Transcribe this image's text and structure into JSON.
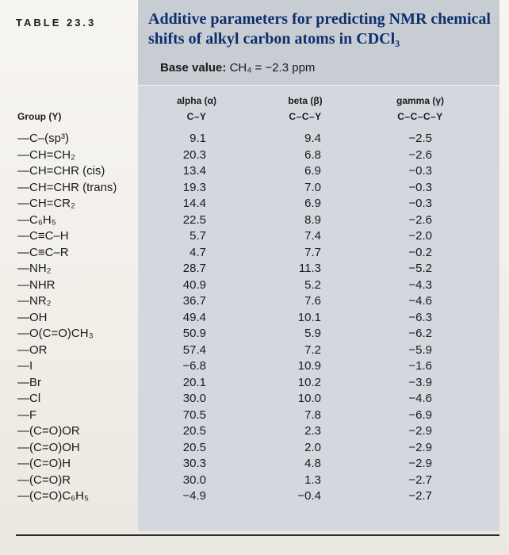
{
  "table_label": "TABLE 23.3",
  "title": "Additive parameters for predicting NMR chemical shifts of alkyl carbon atoms in CDCl₃",
  "base_value_label": "Base value:",
  "base_value_expr": "CH₄ = −2.3 ppm",
  "columns": {
    "group": "Group (Y)",
    "alpha": "alpha (α)",
    "alpha_sub": "C–Y",
    "beta": "beta (β)",
    "beta_sub": "C–C–Y",
    "gamma": "gamma (γ)",
    "gamma_sub": "C–C–C–Y"
  },
  "rows": [
    {
      "group": "—C–(sp³)",
      "alpha": "9.1",
      "beta": "9.4",
      "gamma": "−2.5"
    },
    {
      "group": "—CH=CH₂",
      "alpha": "20.3",
      "beta": "6.8",
      "gamma": "−2.6"
    },
    {
      "group": "—CH=CHR (cis)",
      "alpha": "13.4",
      "beta": "6.9",
      "gamma": "−0.3"
    },
    {
      "group": "—CH=CHR (trans)",
      "alpha": "19.3",
      "beta": "7.0",
      "gamma": "−0.3"
    },
    {
      "group": "—CH=CR₂",
      "alpha": "14.4",
      "beta": "6.9",
      "gamma": "−0.3"
    },
    {
      "group": "—C₆H₅",
      "alpha": "22.5",
      "beta": "8.9",
      "gamma": "−2.6"
    },
    {
      "group": "—C≡C–H",
      "alpha": "5.7",
      "beta": "7.4",
      "gamma": "−2.0"
    },
    {
      "group": "—C≡C–R",
      "alpha": "4.7",
      "beta": "7.7",
      "gamma": "−0.2"
    },
    {
      "group": "—NH₂",
      "alpha": "28.7",
      "beta": "11.3",
      "gamma": "−5.2"
    },
    {
      "group": "—NHR",
      "alpha": "40.9",
      "beta": "5.2",
      "gamma": "−4.3"
    },
    {
      "group": "—NR₂",
      "alpha": "36.7",
      "beta": "7.6",
      "gamma": "−4.6"
    },
    {
      "group": "—OH",
      "alpha": "49.4",
      "beta": "10.1",
      "gamma": "−6.3"
    },
    {
      "group": "—O(C=O)CH₃",
      "alpha": "50.9",
      "beta": "5.9",
      "gamma": "−6.2"
    },
    {
      "group": "—OR",
      "alpha": "57.4",
      "beta": "7.2",
      "gamma": "−5.9"
    },
    {
      "group": "—I",
      "alpha": "−6.8",
      "beta": "10.9",
      "gamma": "−1.6"
    },
    {
      "group": "—Br",
      "alpha": "20.1",
      "beta": "10.2",
      "gamma": "−3.9"
    },
    {
      "group": "—Cl",
      "alpha": "30.0",
      "beta": "10.0",
      "gamma": "−4.6"
    },
    {
      "group": "—F",
      "alpha": "70.5",
      "beta": "7.8",
      "gamma": "−6.9"
    },
    {
      "group": "—(C=O)OR",
      "alpha": "20.5",
      "beta": "2.3",
      "gamma": "−2.9"
    },
    {
      "group": "—(C=O)OH",
      "alpha": "20.5",
      "beta": "2.0",
      "gamma": "−2.9"
    },
    {
      "group": "—(C=O)H",
      "alpha": "30.3",
      "beta": "4.8",
      "gamma": "−2.9"
    },
    {
      "group": "—(C=O)R",
      "alpha": "30.0",
      "beta": "1.3",
      "gamma": "−2.7"
    },
    {
      "group": "—(C=O)C₆H₅",
      "alpha": "−4.9",
      "beta": "−0.4",
      "gamma": "−2.7"
    }
  ]
}
